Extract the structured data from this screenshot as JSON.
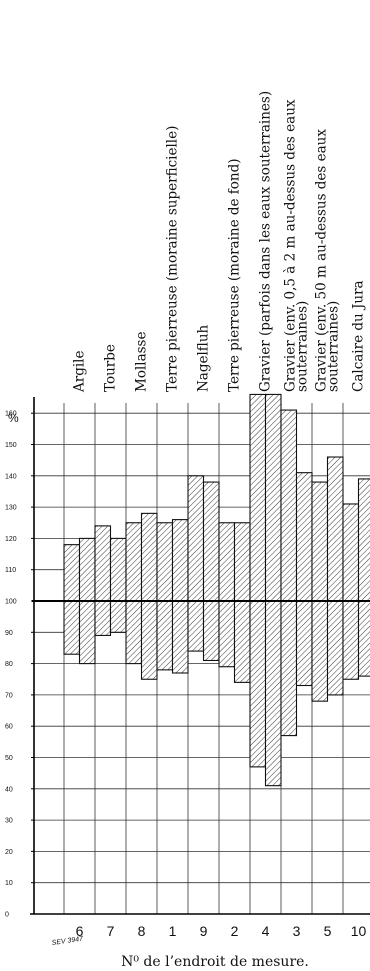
{
  "chart_data": {
    "type": "bar",
    "subtype": "floating-range",
    "ylabel": "%",
    "xlabel": "N⁰ de l’endroit de mesure.",
    "ylim": [
      0,
      170
    ],
    "yticks": [
      0,
      10,
      20,
      30,
      40,
      50,
      60,
      70,
      80,
      90,
      100,
      110,
      120,
      130,
      140,
      150,
      160
    ],
    "reference_line": 100,
    "grid": true,
    "reference_code": "SEV 3947",
    "groups": [
      {
        "number": "6",
        "label": "Argile",
        "bars": [
          {
            "low": 83,
            "high": 118
          },
          {
            "low": 80,
            "high": 120
          }
        ]
      },
      {
        "number": "7",
        "label": "Tourbe",
        "bars": [
          {
            "low": 89,
            "high": 124
          },
          {
            "low": 90,
            "high": 120
          }
        ]
      },
      {
        "number": "8",
        "label": "Mollasse",
        "bars": [
          {
            "low": 80,
            "high": 125
          },
          {
            "low": 75,
            "high": 128
          }
        ]
      },
      {
        "number": "1",
        "label": "Terre pierreuse (moraine superficielle)",
        "bars": [
          {
            "low": 78,
            "high": 125
          },
          {
            "low": 77,
            "high": 126
          }
        ]
      },
      {
        "number": "9",
        "label": "Nagelfluh",
        "bars": [
          {
            "low": 84,
            "high": 140
          },
          {
            "low": 81,
            "high": 138
          }
        ]
      },
      {
        "number": "2",
        "label": "Terre pierreuse (moraine de fond)",
        "bars": [
          {
            "low": 79,
            "high": 125
          },
          {
            "low": 74,
            "high": 125
          }
        ]
      },
      {
        "number": "4",
        "label": "Gravier (parfois dans les eaux souterraines)",
        "bars": [
          {
            "low": 47,
            "high": 166
          },
          {
            "low": 41,
            "high": 166
          }
        ]
      },
      {
        "number": "3",
        "label": "Gravier (env. 0,5 à 2 m au-dessus des eaux souterraines)",
        "bars": [
          {
            "low": 57,
            "high": 161
          },
          {
            "low": 73,
            "high": 141
          }
        ]
      },
      {
        "number": "5",
        "label": "Gravier (env. 50 m au-dessus des eaux souterraines)",
        "bars": [
          {
            "low": 68,
            "high": 138
          },
          {
            "low": 70,
            "high": 146
          }
        ]
      },
      {
        "number": "10",
        "label": "Calcaire du Jura",
        "bars": [
          {
            "low": 75,
            "high": 131
          },
          {
            "low": 76,
            "high": 139
          }
        ]
      }
    ]
  }
}
